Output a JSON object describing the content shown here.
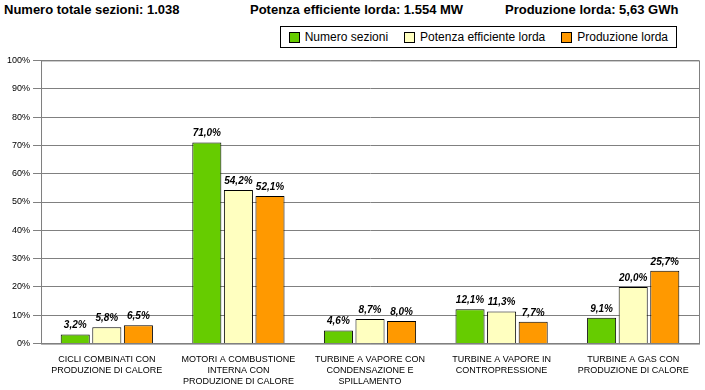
{
  "chart_data": {
    "type": "bar",
    "annotations": [
      "Numero totale sezioni: 1.038",
      "Potenza efficiente lorda: 1.554 MW",
      "Produzione lorda: 5,63 GWh"
    ],
    "categories": [
      "CICLI COMBINATI CON\nPRODUZIONE DI CALORE",
      "MOTORI A COMBUSTIONE\nINTERNA CON\nPRODUZIONE DI CALORE",
      "TURBINE A VAPORE CON\nCONDENSAZIONE E\nSPILLAMENTO",
      "TURBINE A VAPORE IN\nCONTROPRESSIONE",
      "TURBINE A GAS CON\nPRODUZIONE DI CALORE"
    ],
    "series": [
      {
        "name": "Numero sezioni",
        "color": "#66cc00",
        "values": [
          3.2,
          71.0,
          4.6,
          12.1,
          9.1
        ],
        "value_labels": [
          "3,2%",
          "71,0%",
          "4,6%",
          "12,1%",
          "9,1%"
        ]
      },
      {
        "name": "Potenza efficiente lorda",
        "color": "#ffffc0",
        "values": [
          5.8,
          54.2,
          8.7,
          11.3,
          20.0
        ],
        "value_labels": [
          "5,8%",
          "54,2%",
          "8,7%",
          "11,3%",
          "20,0%"
        ]
      },
      {
        "name": "Produzione lorda",
        "color": "#ff9900",
        "values": [
          6.5,
          52.1,
          8.0,
          7.7,
          25.7
        ],
        "value_labels": [
          "6,5%",
          "52,1%",
          "8,0%",
          "7,7%",
          "25,7%"
        ]
      }
    ],
    "ylim": [
      0,
      100
    ],
    "yticks": [
      {
        "value": 0,
        "label": "0%"
      },
      {
        "value": 10,
        "label": "10%"
      },
      {
        "value": 20,
        "label": "20%"
      },
      {
        "value": 30,
        "label": "30%"
      },
      {
        "value": 40,
        "label": "40%"
      },
      {
        "value": 50,
        "label": "50%"
      },
      {
        "value": 60,
        "label": "60%"
      },
      {
        "value": 70,
        "label": "70%"
      },
      {
        "value": 80,
        "label": "80%"
      },
      {
        "value": 90,
        "label": "90%"
      },
      {
        "value": 100,
        "label": "100%"
      }
    ],
    "grid": true,
    "legend": "top-right",
    "data_labels": true
  }
}
